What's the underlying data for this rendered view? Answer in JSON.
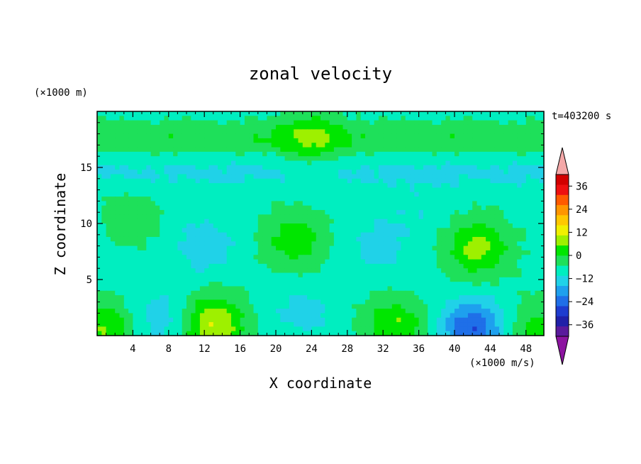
{
  "chart_data": {
    "type": "heatmap",
    "title": "zonal velocity",
    "xlabel": "X coordinate",
    "ylabel": "Z coordinate",
    "x_unit": "(×1000 m/s)",
    "y_unit": "(×1000 m)",
    "time_label": "t=403200 s",
    "xlim": [
      0,
      50
    ],
    "ylim": [
      0,
      20
    ],
    "x_ticks": [
      4,
      8,
      12,
      16,
      20,
      24,
      28,
      32,
      36,
      40,
      44,
      48
    ],
    "y_ticks": [
      5,
      10,
      15
    ],
    "colorbar": {
      "ticks": [
        36,
        24,
        12,
        0,
        -12,
        -24,
        -36
      ],
      "levels": [
        -42,
        -36,
        -30,
        -24,
        -18,
        -12,
        -6,
        0,
        6,
        12,
        18,
        24,
        30,
        36,
        42
      ],
      "colors": [
        "#5a1a9c",
        "#2020a8",
        "#1e3ccf",
        "#1f6fe8",
        "#1ea0ee",
        "#20d2e8",
        "#00eec0",
        "#1ee05a",
        "#00e600",
        "#9ef000",
        "#f0f000",
        "#ffc800",
        "#ff9600",
        "#ff5a00",
        "#ee1010",
        "#d20000"
      ],
      "under_color": "#8c14a0",
      "over_color": "#f4a8a8"
    },
    "field_features": [
      {
        "x": 13,
        "z": 1,
        "value": 20
      },
      {
        "x": 22,
        "z": 8.5,
        "value": 12
      },
      {
        "x": 42.5,
        "z": 7.8,
        "value": 16
      },
      {
        "x": 24,
        "z": 17.6,
        "value": 10
      },
      {
        "x": 42,
        "z": 0.6,
        "value": -22
      },
      {
        "x": 7,
        "z": 1.4,
        "value": -8
      },
      {
        "x": 12,
        "z": 8,
        "value": -8
      },
      {
        "x": 31.5,
        "z": 8,
        "value": -6
      },
      {
        "x": 23,
        "z": 2,
        "value": -6
      },
      {
        "x": 33.5,
        "z": 0.8,
        "value": 14
      },
      {
        "x": 1,
        "z": 0.5,
        "value": 14
      },
      {
        "x": 49,
        "z": 0.5,
        "value": 10
      },
      {
        "x": 4,
        "z": 10.5,
        "value": 6
      },
      {
        "x": 36,
        "z": 11,
        "value": -3
      }
    ]
  }
}
